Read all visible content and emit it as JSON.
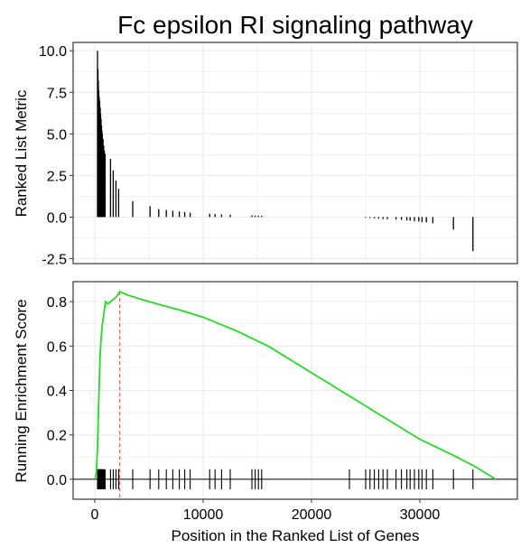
{
  "chart_data": {
    "type": "line",
    "title": "Fc epsilon RI signaling pathway",
    "xlabel": "Position in the Ranked List of Genes",
    "xlim": [
      -2000,
      39000
    ],
    "x_ticks": [
      0,
      10000,
      20000,
      30000
    ],
    "colors": {
      "running_es": "#22dd22",
      "peak_line": "#e06666",
      "bars": "#000000",
      "grid": "#ebebeb"
    },
    "panels": [
      {
        "name": "ranked-list",
        "ylabel": "Ranked List Metric",
        "ylim": [
          -2.8,
          10.5
        ],
        "y_ticks": [
          -2.5,
          0.0,
          2.5,
          5.0,
          7.5,
          10.0
        ],
        "y_tick_labels": [
          "-2.5",
          "0.0",
          "2.5",
          "5.0",
          "7.5",
          "10.0"
        ],
        "bars": [
          [
            250,
            10.0
          ],
          [
            290,
            8.9
          ],
          [
            330,
            8.2
          ],
          [
            370,
            7.6
          ],
          [
            410,
            7.2
          ],
          [
            450,
            7.0
          ],
          [
            500,
            6.6
          ],
          [
            540,
            6.2
          ],
          [
            580,
            5.9
          ],
          [
            620,
            5.5
          ],
          [
            660,
            5.2
          ],
          [
            700,
            5.0
          ],
          [
            760,
            4.7
          ],
          [
            820,
            4.3
          ],
          [
            880,
            4.0
          ],
          [
            950,
            3.8
          ],
          [
            1450,
            3.5
          ],
          [
            1700,
            2.8
          ],
          [
            1950,
            2.2
          ],
          [
            2200,
            1.7
          ],
          [
            3500,
            0.95
          ],
          [
            5100,
            0.65
          ],
          [
            5900,
            0.48
          ],
          [
            6600,
            0.42
          ],
          [
            7200,
            0.38
          ],
          [
            7800,
            0.33
          ],
          [
            8300,
            0.3
          ],
          [
            8800,
            0.26
          ],
          [
            10600,
            0.2
          ],
          [
            11100,
            0.18
          ],
          [
            11700,
            0.16
          ],
          [
            12500,
            0.14
          ],
          [
            14500,
            0.1
          ],
          [
            14800,
            0.09
          ],
          [
            15100,
            0.08
          ],
          [
            15400,
            0.07
          ],
          [
            25000,
            -0.04
          ],
          [
            25400,
            -0.06
          ],
          [
            25800,
            -0.08
          ],
          [
            26200,
            -0.1
          ],
          [
            26600,
            -0.12
          ],
          [
            27000,
            -0.13
          ],
          [
            27800,
            -0.15
          ],
          [
            28300,
            -0.17
          ],
          [
            28800,
            -0.2
          ],
          [
            29100,
            -0.22
          ],
          [
            29500,
            -0.25
          ],
          [
            29900,
            -0.27
          ],
          [
            30200,
            -0.3
          ],
          [
            30600,
            -0.32
          ],
          [
            31200,
            -0.38
          ],
          [
            33100,
            -0.75
          ],
          [
            34900,
            -2.05
          ]
        ]
      },
      {
        "name": "running-es",
        "ylabel": "Running Enrichment Score",
        "ylim": [
          -0.09,
          0.89
        ],
        "y_ticks": [
          0.0,
          0.2,
          0.4,
          0.6,
          0.8
        ],
        "y_tick_labels": [
          "0.0",
          "0.2",
          "0.4",
          "0.6",
          "0.8"
        ],
        "peak_x": 2300,
        "es_curve": [
          [
            0,
            0.0
          ],
          [
            150,
            0.03
          ],
          [
            250,
            0.15
          ],
          [
            330,
            0.3
          ],
          [
            420,
            0.45
          ],
          [
            500,
            0.57
          ],
          [
            600,
            0.65
          ],
          [
            700,
            0.7
          ],
          [
            800,
            0.73
          ],
          [
            900,
            0.77
          ],
          [
            1000,
            0.8
          ],
          [
            1200,
            0.79
          ],
          [
            1450,
            0.8
          ],
          [
            1700,
            0.81
          ],
          [
            1950,
            0.82
          ],
          [
            2100,
            0.83
          ],
          [
            2300,
            0.845
          ],
          [
            3000,
            0.83
          ],
          [
            5000,
            0.8
          ],
          [
            8000,
            0.76
          ],
          [
            10000,
            0.73
          ],
          [
            13000,
            0.67
          ],
          [
            16000,
            0.6
          ],
          [
            20000,
            0.48
          ],
          [
            25000,
            0.33
          ],
          [
            30000,
            0.18
          ],
          [
            33000,
            0.11
          ],
          [
            35000,
            0.06
          ],
          [
            36000,
            0.03
          ],
          [
            37000,
            0.0
          ]
        ],
        "hits": [
          250,
          290,
          330,
          370,
          410,
          450,
          500,
          540,
          580,
          620,
          660,
          700,
          760,
          820,
          880,
          950,
          1450,
          1700,
          1950,
          2200,
          3500,
          5100,
          5900,
          6600,
          7200,
          7800,
          8300,
          8800,
          10600,
          11100,
          11700,
          12500,
          14500,
          14800,
          15100,
          15400,
          23500,
          25000,
          25400,
          25800,
          26200,
          26600,
          27000,
          27800,
          28300,
          28800,
          29100,
          29500,
          29900,
          30200,
          30600,
          31200,
          33100,
          34900
        ]
      }
    ]
  }
}
